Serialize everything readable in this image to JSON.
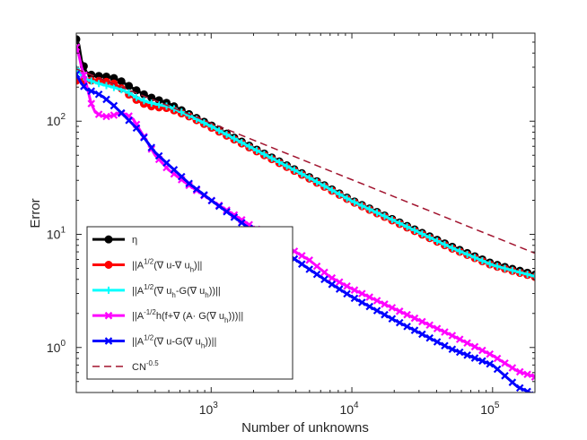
{
  "chart_data": {
    "type": "line",
    "title": "",
    "xlabel": "Number of unknowns",
    "ylabel": "Error",
    "xscale": "log",
    "yscale": "log",
    "xlim": [
      110,
      200000
    ],
    "ylim": [
      0.4,
      600
    ],
    "xticks": [
      {
        "value": 1000,
        "base": "10",
        "exp": "3"
      },
      {
        "value": 10000,
        "base": "10",
        "exp": "4"
      },
      {
        "value": 100000,
        "base": "10",
        "exp": "5"
      }
    ],
    "yticks": [
      {
        "value": 1,
        "base": "10",
        "exp": "0"
      },
      {
        "value": 10,
        "base": "10",
        "exp": "1"
      },
      {
        "value": 100,
        "base": "10",
        "exp": "2"
      }
    ],
    "grid": false,
    "legend_position": "bottom-left",
    "series": [
      {
        "name": "η",
        "legend_parts": [
          {
            "t": "η",
            "s": "n"
          }
        ],
        "color": "#000000",
        "marker": "circle",
        "dash": false,
        "x": [
          110,
          115,
          120,
          130,
          140,
          150,
          165,
          180,
          200,
          230,
          260,
          300,
          350,
          400,
          450,
          500,
          700,
          1000,
          2000,
          5000,
          10000,
          20000,
          50000,
          100000,
          200000
        ],
        "y": [
          530,
          470,
          340,
          270,
          258,
          250,
          252,
          248,
          243,
          225,
          205,
          185,
          167,
          157,
          150,
          143,
          115,
          92,
          58,
          32,
          20,
          13.4,
          7.9,
          5.5,
          4.4
        ]
      },
      {
        "name": "||A1/2(∇ u-∇ uh)||",
        "legend_parts": [
          {
            "t": "||A",
            "s": "n"
          },
          {
            "t": "1/2",
            "s": "sup"
          },
          {
            "t": "(∇ u-∇ u",
            "s": "n"
          },
          {
            "t": "h",
            "s": "sub"
          },
          {
            "t": ")||",
            "s": "n"
          }
        ],
        "color": "#ff0000",
        "marker": "circle",
        "dash": false,
        "x": [
          110,
          130,
          150,
          170,
          200,
          230,
          260,
          300,
          350,
          400,
          450,
          500,
          700,
          1000,
          2000,
          5000,
          10000,
          20000,
          50000,
          100000,
          200000
        ],
        "y": [
          228,
          230,
          228,
          226,
          218,
          195,
          172,
          152,
          138,
          133,
          132,
          130,
          110,
          88,
          56,
          31,
          19.5,
          13,
          7.6,
          5.3,
          4.2
        ]
      },
      {
        "name": "||A1/2(∇ uh-G(∇ uh))||",
        "legend_parts": [
          {
            "t": "||A",
            "s": "n"
          },
          {
            "t": "1/2",
            "s": "sup"
          },
          {
            "t": "(∇ u",
            "s": "n"
          },
          {
            "t": "h",
            "s": "sub"
          },
          {
            "t": "-G(∇ u",
            "s": "n"
          },
          {
            "t": "h",
            "s": "sub"
          },
          {
            "t": "))||",
            "s": "n"
          }
        ],
        "color": "#00ffff",
        "marker": "plus",
        "dash": false,
        "x": [
          110,
          120,
          130,
          150,
          170,
          200,
          230,
          260,
          300,
          350,
          400,
          450,
          500,
          700,
          1000,
          2000,
          5000,
          10000,
          20000,
          50000,
          100000,
          200000
        ],
        "y": [
          290,
          255,
          235,
          220,
          210,
          200,
          190,
          178,
          160,
          148,
          142,
          138,
          135,
          112,
          90,
          57,
          31.5,
          19.7,
          13.2,
          7.7,
          5.35,
          4.25
        ]
      },
      {
        "name": "||A-1/2h(f+∇ (A· G(∇ uh)))||",
        "legend_parts": [
          {
            "t": "||A",
            "s": "n"
          },
          {
            "t": "-1/2",
            "s": "sup"
          },
          {
            "t": "h(f+∇ (A· G(∇ u",
            "s": "n"
          },
          {
            "t": "h",
            "s": "sub"
          },
          {
            "t": ")))||",
            "s": "n"
          }
        ],
        "color": "#ff00ff",
        "marker": "x",
        "dash": false,
        "x": [
          110,
          115,
          120,
          130,
          140,
          150,
          165,
          180,
          200,
          220,
          250,
          280,
          300,
          350,
          400,
          500,
          700,
          1000,
          1500,
          2000,
          3000,
          5000,
          7000,
          10000,
          20000,
          50000,
          100000,
          150000,
          200000
        ],
        "y": [
          450,
          380,
          300,
          210,
          145,
          120,
          112,
          110,
          112,
          118,
          115,
          104,
          90,
          66,
          50,
          37,
          27,
          20,
          14.5,
          11.5,
          8.6,
          5.9,
          4.2,
          3.3,
          2.2,
          1.3,
          0.85,
          0.62,
          0.55
        ]
      },
      {
        "name": "||A1/2(∇ u-G(∇ uh))||",
        "legend_parts": [
          {
            "t": "||A",
            "s": "n"
          },
          {
            "t": "1/2",
            "s": "sup"
          },
          {
            "t": "(∇ u-G(∇ u",
            "s": "n"
          },
          {
            "t": "h",
            "s": "sub"
          },
          {
            "t": "))||",
            "s": "n"
          }
        ],
        "color": "#0000ff",
        "marker": "x",
        "dash": false,
        "x": [
          110,
          120,
          130,
          150,
          170,
          200,
          250,
          300,
          400,
          500,
          700,
          1000,
          1500,
          2000,
          3000,
          5000,
          7000,
          10000,
          20000,
          50000,
          100000,
          150000,
          200000
        ],
        "y": [
          260,
          215,
          190,
          180,
          165,
          140,
          107,
          85,
          53,
          41,
          28,
          20,
          13.8,
          10.6,
          7.6,
          4.9,
          3.7,
          2.8,
          1.75,
          0.98,
          0.7,
          0.45,
          0.38
        ]
      },
      {
        "name": "CN-0.5",
        "legend_parts": [
          {
            "t": "CN",
            "s": "n"
          },
          {
            "t": "-0.5",
            "s": "sup"
          }
        ],
        "color": "#a2142f",
        "marker": "none",
        "dash": true,
        "x": [
          110,
          200000
        ],
        "y": [
          290,
          6.8
        ]
      }
    ]
  }
}
